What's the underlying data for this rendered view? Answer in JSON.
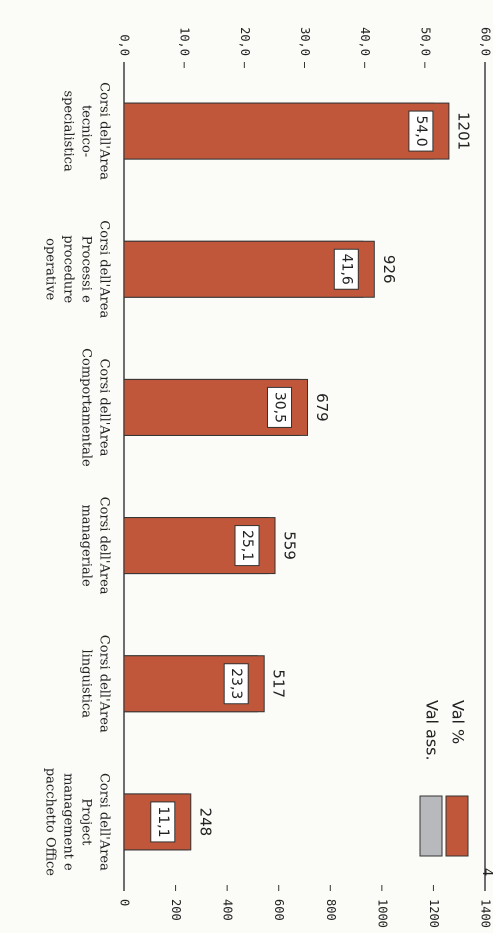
{
  "chart_data": {
    "type": "bar",
    "categories": [
      [
        "Corsi dell'Area",
        "tecnico-",
        "specialistica"
      ],
      [
        "Corsi dell'Area",
        "Processi e",
        "procedure",
        "operative"
      ],
      [
        "Corsi dell'Area",
        "Comportamentale"
      ],
      [
        "Corsi dell'Area",
        "manageriale"
      ],
      [
        "Corsi dell'Area",
        "linguistica"
      ],
      [
        "Corsi dell'Area",
        "Project",
        "management e",
        "pacchetto Office"
      ]
    ],
    "series": [
      {
        "name": "Val %",
        "color": "#c0573a",
        "values": [
          54.0,
          41.6,
          30.5,
          25.1,
          23.3,
          11.1
        ],
        "labels": [
          "54,0",
          "41,6",
          "30,5",
          "25,1",
          "23,3",
          "11,1"
        ]
      },
      {
        "name": "Val ass.",
        "color": "#b7b9bc",
        "values": [
          1201,
          926,
          679,
          559,
          517,
          248
        ],
        "labels": [
          "1201",
          "926",
          "679",
          "559",
          "517",
          "248"
        ]
      }
    ],
    "y_left": {
      "range": [
        0,
        60
      ],
      "ticks": [
        "0,0",
        "10,0",
        "20,0",
        "30,0",
        "40,0",
        "50,0",
        "60,0"
      ]
    },
    "y_right": {
      "range": [
        0,
        1400
      ],
      "ticks": [
        "0",
        "200",
        "400",
        "600",
        "800",
        "1000",
        "1200",
        "1400"
      ]
    },
    "legend": {
      "position": "top-right"
    },
    "grid": false
  },
  "page_number": "4"
}
